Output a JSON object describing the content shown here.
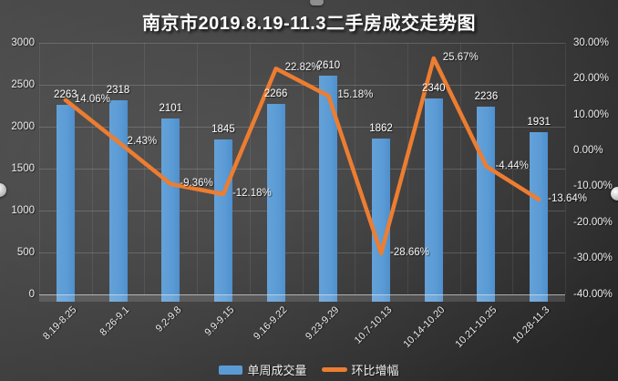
{
  "title": "南京市2019.8.19-11.3二手房成交走势图",
  "chart_data": {
    "type": "combo-bar-line",
    "title": "南京市2019.8.19-11.3二手房成交走势图",
    "categories": [
      "8.19-8.25",
      "8.26-9.1",
      "9.2-9.8",
      "9.9-9.15",
      "9.16-9.22",
      "9.23-9.29",
      "10.7-10.13",
      "10.14-10.20",
      "10.21-10.25",
      "10.28-11.3"
    ],
    "series": [
      {
        "name": "单周成交量",
        "type": "bar",
        "axis": "left",
        "color": "#5b9bd5",
        "values": [
          2263,
          2318,
          2101,
          1845,
          2266,
          2610,
          1862,
          2340,
          2236,
          1931
        ],
        "value_labels": [
          "2263",
          "2318",
          "2101",
          "1845",
          "2266",
          "2610",
          "1862",
          "2340",
          "2236",
          "1931"
        ]
      },
      {
        "name": "环比增幅",
        "type": "line",
        "axis": "right",
        "color": "#ed7d31",
        "values": [
          14.06,
          2.43,
          -9.36,
          -12.18,
          22.82,
          15.18,
          -28.66,
          25.67,
          -4.44,
          -13.64
        ],
        "value_labels": [
          "14.06%",
          "2.43%",
          "-9.36%",
          "-12.18%",
          "22.82%",
          "15.18%",
          "-28.66%",
          "25.67%",
          "-4.44%",
          "-13.64%"
        ]
      }
    ],
    "left_axis": {
      "min": 0,
      "max": 3000,
      "step": 500,
      "ticks": [
        "3000",
        "2500",
        "2000",
        "1500",
        "1000",
        "500",
        "0"
      ]
    },
    "right_axis": {
      "min": -40,
      "max": 30,
      "step": 10,
      "ticks": [
        "30.00%",
        "20.00%",
        "10.00%",
        "0.00%",
        "-10.00%",
        "-20.00%",
        "-30.00%",
        "-40.00%"
      ]
    },
    "grid": true,
    "legend_position": "bottom",
    "legend": [
      {
        "label": "单周成交量",
        "color": "#5b9bd5",
        "type": "bar"
      },
      {
        "label": "环比增幅",
        "color": "#ed7d31",
        "type": "line"
      }
    ]
  }
}
